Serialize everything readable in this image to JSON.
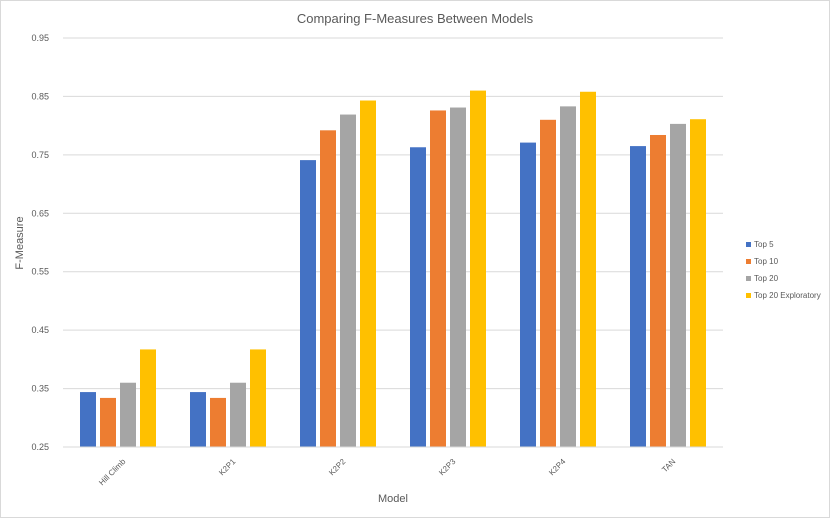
{
  "chart_data": {
    "type": "bar",
    "title": "Comparing F-Measures Between Models",
    "xlabel": "Model",
    "ylabel": "F-Measure",
    "ylim": [
      0.25,
      0.95
    ],
    "yticks": [
      "0.95",
      "0.85",
      "0.75",
      "0.65",
      "0.55",
      "0.45",
      "0.35",
      "0.25"
    ],
    "ytick_values": [
      0.95,
      0.85,
      0.75,
      0.65,
      0.55,
      0.45,
      0.35,
      0.25
    ],
    "grid": true,
    "legend_position": "right",
    "categories": [
      "Hill Climb",
      "K2P1",
      "K2P2",
      "K2P3",
      "K2P4",
      "TAN"
    ],
    "series": [
      {
        "name": "Top 5",
        "color": "#4472C4",
        "values": [
          0.344,
          0.344,
          0.741,
          0.763,
          0.771,
          0.765
        ]
      },
      {
        "name": "Top 10",
        "color": "#ED7D31",
        "values": [
          0.334,
          0.334,
          0.792,
          0.826,
          0.81,
          0.784
        ]
      },
      {
        "name": "Top 20",
        "color": "#A5A5A5",
        "values": [
          0.36,
          0.36,
          0.819,
          0.831,
          0.833,
          0.803
        ]
      },
      {
        "name": "Top 20 Exploratory",
        "color": "#FFC000",
        "values": [
          0.417,
          0.417,
          0.843,
          0.86,
          0.858,
          0.811
        ]
      }
    ]
  }
}
